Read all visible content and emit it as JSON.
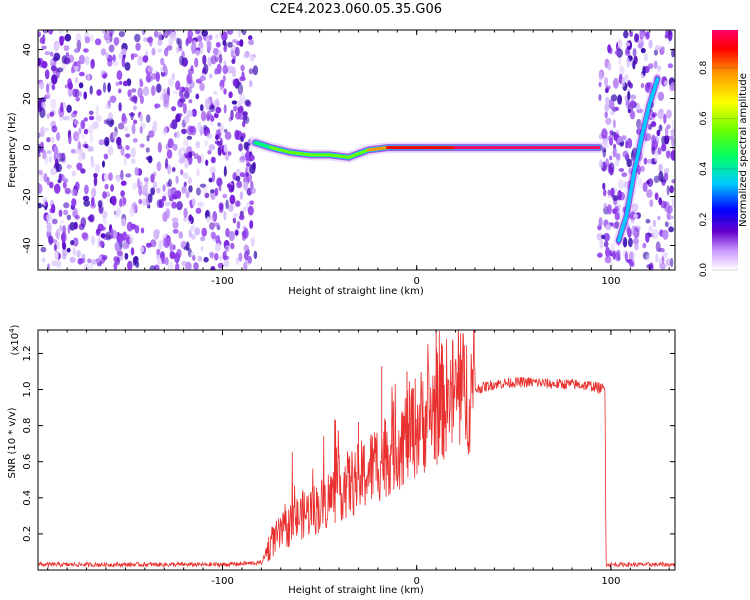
{
  "figure_title": "C2E4.2023.060.05.35.G06",
  "chart_data": [
    {
      "type": "heatmap",
      "xlabel": "Height of straight line (km)",
      "ylabel": "Frequency (Hz)",
      "xlim": [
        -195,
        133
      ],
      "ylim": [
        -50,
        48
      ],
      "x_ticks": [
        -100,
        0,
        100
      ],
      "y_ticks": [
        -40,
        -20,
        0,
        20,
        40
      ],
      "colorbar": {
        "label": "Normalized spectral amplitude",
        "range": [
          0.0,
          0.95
        ],
        "ticks": [
          "0.0",
          "0.2",
          "0.4",
          "0.6",
          "0.8"
        ],
        "colors": [
          "#ffffff",
          "#6600cc",
          "#0000ff",
          "#00ccff",
          "#00ff66",
          "#66ff00",
          "#ffff00",
          "#ff9900",
          "#ff0000",
          "#ff0066"
        ]
      },
      "regions": [
        {
          "name": "noise",
          "x_range": [
            -195,
            -83
          ]
        },
        {
          "name": "noise",
          "x_range": [
            94,
            133
          ]
        }
      ],
      "signal_trace": {
        "x": [
          -83,
          -75,
          -65,
          -55,
          -45,
          -35,
          -25,
          -15,
          -5,
          5,
          20,
          40,
          60,
          80,
          94
        ],
        "y": [
          2,
          0,
          -2,
          -3,
          -3,
          -4,
          -1,
          0,
          0,
          0,
          0,
          0,
          0,
          0,
          0
        ],
        "amplitude": [
          0.35,
          0.45,
          0.5,
          0.5,
          0.5,
          0.55,
          0.7,
          0.8,
          0.85,
          0.85,
          0.9,
          0.9,
          0.9,
          0.9,
          0.9
        ]
      },
      "secondary_trace": {
        "x": [
          104,
          108,
          112,
          116,
          120,
          124
        ],
        "y": [
          -38,
          -28,
          -10,
          5,
          18,
          28
        ],
        "amplitude": [
          0.25,
          0.3,
          0.3,
          0.3,
          0.3,
          0.3
        ]
      }
    },
    {
      "type": "line",
      "xlabel": "Height of straight line (km)",
      "ylabel": "SNR (10 * v/v)",
      "y_multiplier": "(x10",
      "y_multiplier_exp": "4",
      "y_multiplier_close": ")",
      "xlim": [
        -195,
        133
      ],
      "ylim": [
        0,
        1.33
      ],
      "x_ticks": [
        -100,
        0,
        100
      ],
      "y_ticks": [
        "0.2",
        "0.4",
        "0.6",
        "0.8",
        "1.0",
        "1.2"
      ],
      "series": [
        {
          "color": "#e8302e",
          "x": [
            -195,
            -150,
            -100,
            -80,
            -75,
            -70,
            -60,
            -50,
            -40,
            -30,
            -25,
            -20,
            -15,
            -10,
            -5,
            0,
            5,
            10,
            15,
            20,
            30,
            40,
            50,
            60,
            70,
            80,
            90,
            97,
            97.5,
            100,
            120,
            133
          ],
          "y": [
            0.03,
            0.03,
            0.03,
            0.04,
            0.15,
            0.2,
            0.3,
            0.35,
            0.45,
            0.5,
            0.55,
            0.6,
            0.65,
            0.7,
            0.75,
            0.8,
            0.85,
            0.9,
            0.95,
            0.97,
            1.0,
            1.03,
            1.04,
            1.04,
            1.03,
            1.03,
            1.02,
            1.0,
            0.03,
            0.03,
            0.03,
            0.03
          ]
        }
      ]
    }
  ]
}
